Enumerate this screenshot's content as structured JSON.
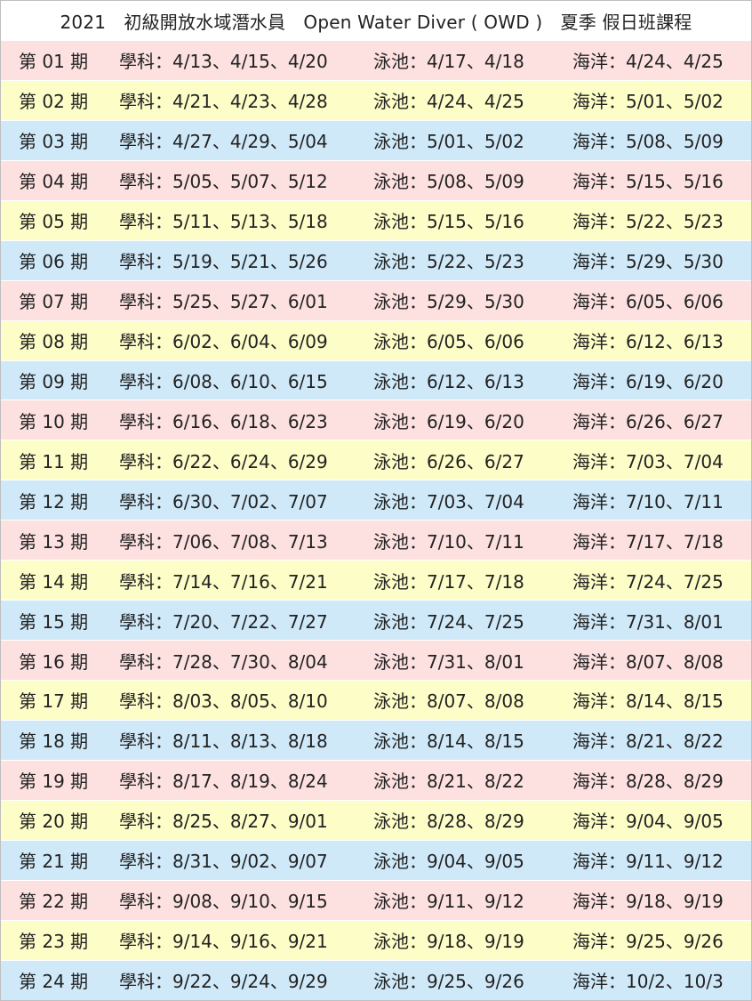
{
  "title": "2021　初級開放水域潛水員　Open Water Diver ( OWD )　夏季 假日班課程",
  "colors": {
    "pink": "#fde0e0",
    "yellow": "#fdfdc8",
    "blue": "#cfe9f9"
  },
  "rows": [
    {
      "period": "第 01 期",
      "theory": "學科：4/13、4/15、4/20",
      "pool": "泳池：4/17、4/18",
      "ocean": "海洋：4/24、4/25"
    },
    {
      "period": "第 02 期",
      "theory": "學科：4/21、4/23、4/28",
      "pool": "泳池：4/24、4/25",
      "ocean": "海洋：5/01、5/02"
    },
    {
      "period": "第 03 期",
      "theory": "學科：4/27、4/29、5/04",
      "pool": "泳池：5/01、5/02",
      "ocean": "海洋：5/08、5/09"
    },
    {
      "period": "第 04 期",
      "theory": "學科：5/05、5/07、5/12",
      "pool": "泳池：5/08、5/09",
      "ocean": "海洋：5/15、5/16"
    },
    {
      "period": "第 05 期",
      "theory": "學科：5/11、5/13、5/18",
      "pool": "泳池：5/15、5/16",
      "ocean": "海洋：5/22、5/23"
    },
    {
      "period": "第 06 期",
      "theory": "學科：5/19、5/21、5/26",
      "pool": "泳池：5/22、5/23",
      "ocean": "海洋：5/29、5/30"
    },
    {
      "period": "第 07 期",
      "theory": "學科：5/25、5/27、6/01",
      "pool": "泳池：5/29、5/30",
      "ocean": "海洋：6/05、6/06"
    },
    {
      "period": "第 08 期",
      "theory": "學科：6/02、6/04、6/09",
      "pool": "泳池：6/05、6/06",
      "ocean": "海洋：6/12、6/13"
    },
    {
      "period": "第 09 期",
      "theory": "學科：6/08、6/10、6/15",
      "pool": "泳池：6/12、6/13",
      "ocean": "海洋：6/19、6/20"
    },
    {
      "period": "第 10 期",
      "theory": "學科：6/16、6/18、6/23",
      "pool": "泳池：6/19、6/20",
      "ocean": "海洋：6/26、6/27"
    },
    {
      "period": "第 11 期",
      "theory": "學科：6/22、6/24、6/29",
      "pool": "泳池：6/26、6/27",
      "ocean": "海洋：7/03、7/04"
    },
    {
      "period": "第 12 期",
      "theory": "學科：6/30、7/02、7/07",
      "pool": "泳池：7/03、7/04",
      "ocean": "海洋：7/10、7/11"
    },
    {
      "period": "第 13 期",
      "theory": "學科：7/06、7/08、7/13",
      "pool": "泳池：7/10、7/11",
      "ocean": "海洋：7/17、7/18"
    },
    {
      "period": "第 14 期",
      "theory": "學科：7/14、7/16、7/21",
      "pool": "泳池：7/17、7/18",
      "ocean": "海洋：7/24、7/25"
    },
    {
      "period": "第 15 期",
      "theory": "學科：7/20、7/22、7/27",
      "pool": "泳池：7/24、7/25",
      "ocean": "海洋：7/31、8/01"
    },
    {
      "period": "第 16 期",
      "theory": "學科：7/28、7/30、8/04",
      "pool": "泳池：7/31、8/01",
      "ocean": "海洋：8/07、8/08"
    },
    {
      "period": "第 17 期",
      "theory": "學科：8/03、8/05、8/10",
      "pool": "泳池：8/07、8/08",
      "ocean": "海洋：8/14、8/15"
    },
    {
      "period": "第 18 期",
      "theory": "學科：8/11、8/13、8/18",
      "pool": "泳池：8/14、8/15",
      "ocean": "海洋：8/21、8/22"
    },
    {
      "period": "第 19 期",
      "theory": "學科：8/17、8/19、8/24",
      "pool": "泳池：8/21、8/22",
      "ocean": "海洋：8/28、8/29"
    },
    {
      "period": "第 20 期",
      "theory": "學科：8/25、8/27、9/01",
      "pool": "泳池：8/28、8/29",
      "ocean": "海洋：9/04、9/05"
    },
    {
      "period": "第 21 期",
      "theory": "學科：8/31、9/02、9/07",
      "pool": "泳池：9/04、9/05",
      "ocean": "海洋：9/11、9/12"
    },
    {
      "period": "第 22 期",
      "theory": "學科：9/08、9/10、9/15",
      "pool": "泳池：9/11、9/12",
      "ocean": "海洋：9/18、9/19"
    },
    {
      "period": "第 23 期",
      "theory": "學科：9/14、9/16、9/21",
      "pool": "泳池：9/18、9/19",
      "ocean": "海洋：9/25、9/26"
    },
    {
      "period": "第 24 期",
      "theory": "學科：9/22、9/24、9/29",
      "pool": "泳池：9/25、9/26",
      "ocean": "海洋：10/2、10/3"
    }
  ]
}
